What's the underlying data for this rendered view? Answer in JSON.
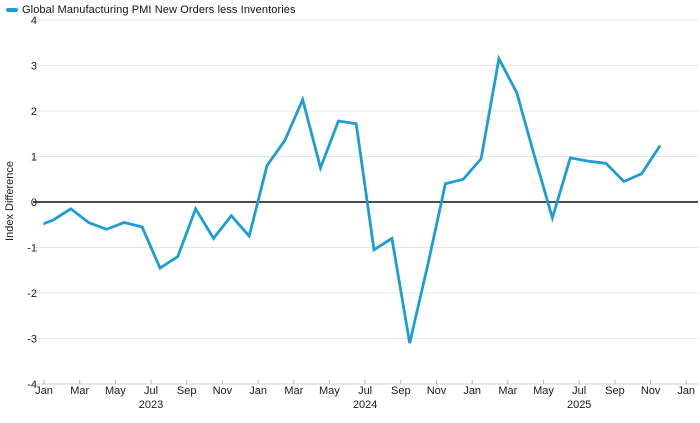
{
  "legend": {
    "label": "Global Manufacturing PMI New Orders less Inventories",
    "swatch_color": "#1d9cd6"
  },
  "y_axis": {
    "title": "Index Difference",
    "ticks": [
      4,
      3,
      2,
      1,
      0,
      -1,
      -2,
      -3,
      -4
    ]
  },
  "x_axis": {
    "tick_labels": [
      "Jan",
      "Mar",
      "May",
      "Jul",
      "Sep",
      "Nov",
      "Jan",
      "Mar",
      "May",
      "Jul",
      "Sep",
      "Nov",
      "Jan",
      "Mar",
      "May",
      "Jul",
      "Sep",
      "Nov",
      "Jan"
    ],
    "year_labels": [
      {
        "text": "2023",
        "tick_index": 3
      },
      {
        "text": "2024",
        "tick_index": 9
      },
      {
        "text": "2025",
        "tick_index": 15
      }
    ]
  },
  "chart_data": {
    "type": "line",
    "series_name": "Global Manufacturing PMI New Orders less Inventories",
    "ylabel": "Index Difference",
    "ylim": [
      -4,
      4
    ],
    "grid": "horizontal",
    "zero_line": true,
    "legend_position": "top-left",
    "line_color": "#1d9cd6",
    "months": [
      "Dec 2022",
      "Jan 2023",
      "Feb 2023",
      "Mar 2023",
      "Apr 2023",
      "May 2023",
      "Jun 2023",
      "Jul 2023",
      "Aug 2023",
      "Sep 2023",
      "Oct 2023",
      "Nov 2023",
      "Dec 2023",
      "Jan 2024",
      "Feb 2024",
      "Mar 2024",
      "Apr 2024",
      "May 2024",
      "Jun 2024",
      "Jul 2024",
      "Aug 2024",
      "Sep 2024",
      "Oct 2024",
      "Nov 2024",
      "Dec 2024",
      "Jan 2025",
      "Feb 2025",
      "Mar 2025",
      "Apr 2025",
      "May 2025",
      "Jun 2025",
      "Jul 2025",
      "Aug 2025",
      "Sep 2025",
      "Oct 2025",
      "Nov 2025"
    ],
    "values": [
      -0.55,
      -0.4,
      -0.15,
      -0.45,
      -0.6,
      -0.45,
      -0.55,
      -1.45,
      -1.2,
      -0.15,
      -0.8,
      -0.3,
      -0.75,
      0.8,
      1.35,
      2.25,
      0.75,
      1.78,
      1.72,
      -1.05,
      -0.8,
      -3.1,
      -1.4,
      0.4,
      0.5,
      0.95,
      3.15,
      2.4,
      1.0,
      -0.35,
      0.97,
      0.9,
      0.85,
      0.45,
      0.62,
      1.22
    ]
  },
  "colors": {
    "line": "#1d9cd6",
    "grid": "#e4e4e4",
    "zero_line": "#111111",
    "bottom_axis": "#cfcfcf",
    "tick_mark": "#b3b3b3",
    "text": "#1a1a1a"
  }
}
